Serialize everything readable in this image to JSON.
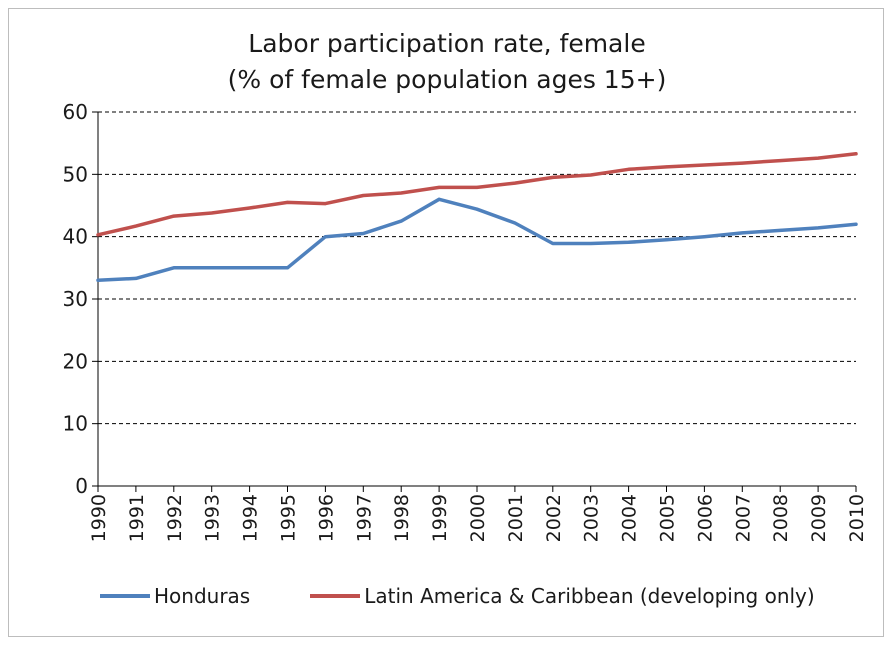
{
  "chart_data": {
    "type": "line",
    "title": "Labor participation rate, female",
    "subtitle": "(% of female population ages 15+)",
    "x": [
      "1990",
      "1991",
      "1992",
      "1993",
      "1994",
      "1995",
      "1996",
      "1997",
      "1998",
      "1999",
      "2000",
      "2001",
      "2002",
      "2003",
      "2004",
      "2005",
      "2006",
      "2007",
      "2008",
      "2009",
      "2010"
    ],
    "ylim": [
      0,
      60
    ],
    "yticks": [
      0,
      10,
      20,
      30,
      40,
      50,
      60
    ],
    "grid": "horizontal-dashed",
    "legend": "bottom",
    "series": [
      {
        "name": "Honduras",
        "color": "#4f81bd",
        "values": [
          33,
          33.3,
          35,
          35,
          35,
          35,
          40,
          40.5,
          42.5,
          46,
          44.4,
          42.2,
          38.9,
          38.9,
          39.1,
          39.5,
          40,
          40.6,
          41,
          41.4,
          42
        ]
      },
      {
        "name": "Latin America & Caribbean (developing only)",
        "color": "#c0504d",
        "values": [
          40.3,
          41.7,
          43.3,
          43.8,
          44.6,
          45.5,
          45.3,
          46.6,
          47,
          47.9,
          47.9,
          48.6,
          49.5,
          49.9,
          50.8,
          51.2,
          51.5,
          51.8,
          52.2,
          52.6,
          53.3
        ]
      }
    ]
  }
}
